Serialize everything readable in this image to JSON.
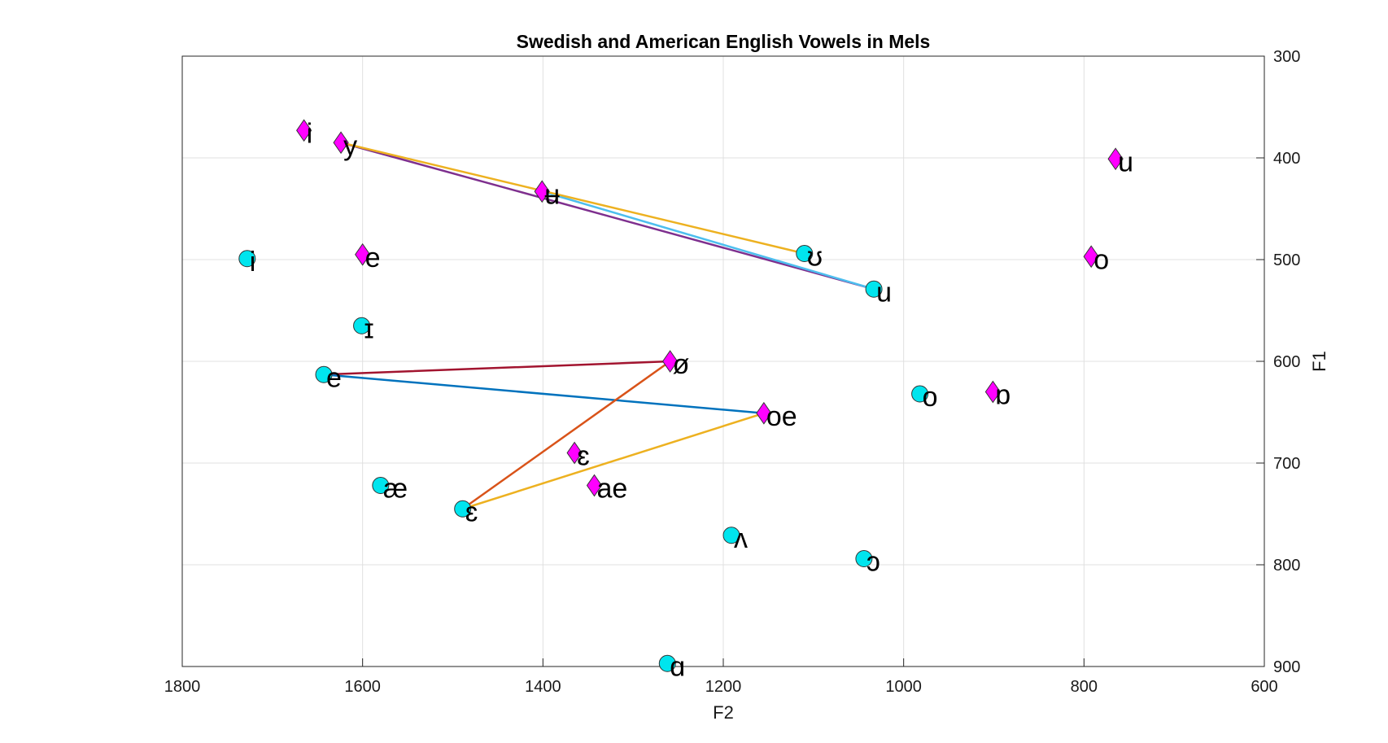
{
  "chart_data": {
    "type": "scatter",
    "title": "Swedish and American English Vowels in Mels",
    "xlabel": "F2",
    "ylabel": "F1",
    "xlim": [
      1800,
      600
    ],
    "ylim": [
      900,
      300
    ],
    "x_reversed": true,
    "y_reversed": true,
    "y_axis_location": "right",
    "grid": true,
    "xticks": [
      "1800",
      "1600",
      "1400",
      "1200",
      "1000",
      "800",
      "600"
    ],
    "yticks": [
      "300",
      "400",
      "500",
      "600",
      "700",
      "800",
      "900"
    ],
    "xtick_values": [
      1800,
      1600,
      1400,
      1200,
      1000,
      800,
      600
    ],
    "ytick_values": [
      300,
      400,
      500,
      600,
      700,
      800,
      900
    ],
    "colors": {
      "circle_fill": "#00e5ee",
      "diamond_fill": "#ff00ff",
      "marker_edge": "#333333",
      "grid": "#e0e0e0"
    },
    "series": [
      {
        "marker": "diamond",
        "points": [
          {
            "label": "i",
            "x": 1665,
            "y": 373
          },
          {
            "label": "y",
            "x": 1624,
            "y": 385
          },
          {
            "label": "ʉ",
            "x": 1401,
            "y": 433
          },
          {
            "label": "u",
            "x": 765,
            "y": 401
          },
          {
            "label": "e",
            "x": 1600,
            "y": 495
          },
          {
            "label": "o",
            "x": 792,
            "y": 497
          },
          {
            "label": "ø",
            "x": 1259,
            "y": 600
          },
          {
            "label": "ɒ",
            "x": 901,
            "y": 630
          },
          {
            "label": "oe",
            "x": 1155,
            "y": 651
          },
          {
            "label": "ɛ",
            "x": 1365,
            "y": 690
          },
          {
            "label": "ae",
            "x": 1343,
            "y": 722
          }
        ]
      },
      {
        "marker": "circle",
        "points": [
          {
            "label": "i",
            "x": 1728,
            "y": 499
          },
          {
            "label": "ʊ",
            "x": 1110,
            "y": 494
          },
          {
            "label": "u",
            "x": 1033,
            "y": 529
          },
          {
            "label": "ɪ",
            "x": 1601,
            "y": 565
          },
          {
            "label": "e",
            "x": 1643,
            "y": 613
          },
          {
            "label": "o",
            "x": 982,
            "y": 632
          },
          {
            "label": "æ",
            "x": 1580,
            "y": 722
          },
          {
            "label": "ɛ",
            "x": 1489,
            "y": 745
          },
          {
            "label": "ʌ",
            "x": 1191,
            "y": 771
          },
          {
            "label": "ɔ",
            "x": 1044,
            "y": 794
          },
          {
            "label": "ɑ",
            "x": 1262,
            "y": 897
          }
        ]
      }
    ],
    "lines": [
      {
        "color": "#7e2f8e",
        "points": [
          [
            1624,
            385
          ],
          [
            1033,
            529
          ]
        ]
      },
      {
        "color": "#4dbeee",
        "points": [
          [
            1401,
            433
          ],
          [
            1033,
            529
          ]
        ]
      },
      {
        "color": "#edb120",
        "points": [
          [
            1624,
            385
          ],
          [
            1110,
            494
          ]
        ]
      },
      {
        "color": "#a2142f",
        "points": [
          [
            1643,
            613
          ],
          [
            1259,
            600
          ]
        ]
      },
      {
        "color": "#0072bd",
        "points": [
          [
            1643,
            613
          ],
          [
            1155,
            651
          ]
        ]
      },
      {
        "color": "#d95319",
        "points": [
          [
            1489,
            745
          ],
          [
            1259,
            600
          ]
        ]
      },
      {
        "color": "#edb120",
        "points": [
          [
            1489,
            745
          ],
          [
            1155,
            651
          ]
        ]
      }
    ]
  }
}
